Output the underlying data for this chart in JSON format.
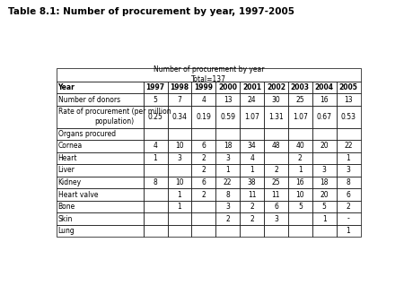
{
  "title": "Table 8.1: Number of procurement by year, 1997-2005",
  "table_header_line1": "Number of procurement by year",
  "table_header_line2": "Total=137",
  "rows": [
    {
      "label": "Year",
      "values": [
        "1997",
        "1998",
        "1999",
        "2000",
        "2001",
        "2002",
        "2003",
        "2004",
        "2005"
      ],
      "is_header": true,
      "is_section": false,
      "tall": false
    },
    {
      "label": "Number of donors",
      "values": [
        "5",
        "7",
        "4",
        "13",
        "24",
        "30",
        "25",
        "16",
        "13"
      ],
      "is_header": false,
      "is_section": false,
      "tall": false
    },
    {
      "label": "Rate of procurement (per million\npopulation)",
      "values": [
        "0.25",
        "0.34",
        "0.19",
        "0.59",
        "1.07",
        "1.31",
        "1.07",
        "0.67",
        "0.53"
      ],
      "is_header": false,
      "is_section": false,
      "tall": true
    },
    {
      "label": "Organs procured",
      "values": [
        "",
        "",
        "",
        "",
        "",
        "",
        "",
        "",
        ""
      ],
      "is_header": false,
      "is_section": true,
      "tall": false
    },
    {
      "label": "Cornea",
      "values": [
        "4",
        "10",
        "6",
        "18",
        "34",
        "48",
        "40",
        "20",
        "22"
      ],
      "is_header": false,
      "is_section": false,
      "tall": false
    },
    {
      "label": "Heart",
      "values": [
        "1",
        "3",
        "2",
        "3",
        "4",
        "",
        "2",
        "",
        "1"
      ],
      "is_header": false,
      "is_section": false,
      "tall": false
    },
    {
      "label": "Liver",
      "values": [
        "",
        "",
        "2",
        "1",
        "1",
        "2",
        "1",
        "3",
        "3"
      ],
      "is_header": false,
      "is_section": false,
      "tall": false
    },
    {
      "label": "Kidney",
      "values": [
        "8",
        "10",
        "6",
        "22",
        "38",
        "25",
        "16",
        "18",
        "8"
      ],
      "is_header": false,
      "is_section": false,
      "tall": false
    },
    {
      "label": "Heart valve",
      "values": [
        "",
        "1",
        "2",
        "8",
        "11",
        "11",
        "10",
        "20",
        "6"
      ],
      "is_header": false,
      "is_section": false,
      "tall": false
    },
    {
      "label": "Bone",
      "values": [
        "",
        "1",
        "",
        "3",
        "2",
        "6",
        "5",
        "5",
        "2"
      ],
      "is_header": false,
      "is_section": false,
      "tall": false
    },
    {
      "label": "Skin",
      "values": [
        "",
        "",
        "",
        "2",
        "2",
        "3",
        "",
        "1",
        "-"
      ],
      "is_header": false,
      "is_section": false,
      "tall": false
    },
    {
      "label": "Lung",
      "values": [
        "",
        "",
        "",
        "",
        "",
        "",
        "",
        "",
        "1"
      ],
      "is_header": false,
      "is_section": false,
      "tall": false
    }
  ],
  "bg_color": "#ffffff",
  "border_color": "#000000",
  "text_color": "#000000",
  "title_fontsize": 7.5,
  "cell_fontsize": 5.5,
  "header_fontsize": 5.5,
  "merged_header_fontsize": 5.5
}
